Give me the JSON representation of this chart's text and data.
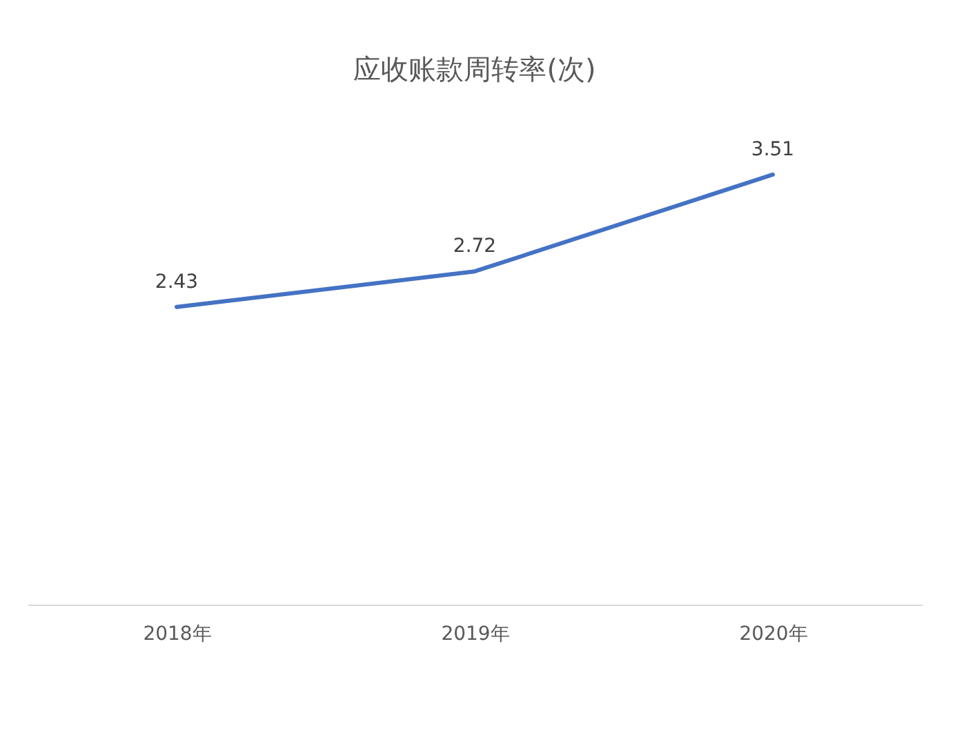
{
  "chart_data": {
    "type": "line",
    "title": "应收账款周转率(次)",
    "categories": [
      "2018年",
      "2019年",
      "2020年"
    ],
    "series": [
      {
        "color": "#4472c4",
        "values": [
          2.43,
          2.72,
          3.51
        ]
      }
    ],
    "data_labels": true
  }
}
